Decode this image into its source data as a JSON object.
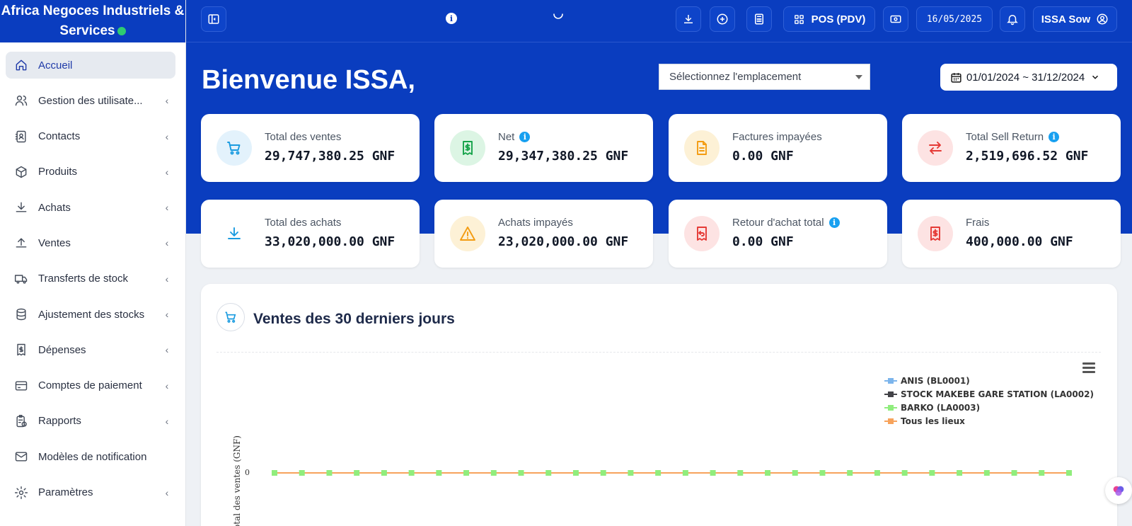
{
  "brand": {
    "line1": "Africa Negoces Industriels &",
    "line2": "Services"
  },
  "sidebar": {
    "items": [
      {
        "label": "Accueil",
        "icon": "home-icon",
        "active": true,
        "chevron": false
      },
      {
        "label": "Gestion des utilisate...",
        "icon": "users-icon",
        "chevron": true
      },
      {
        "label": "Contacts",
        "icon": "contacts-icon",
        "chevron": true
      },
      {
        "label": "Produits",
        "icon": "box-icon",
        "chevron": true
      },
      {
        "label": "Achats",
        "icon": "download-icon",
        "chevron": true
      },
      {
        "label": "Ventes",
        "icon": "upload-icon",
        "chevron": true
      },
      {
        "label": "Transferts de stock",
        "icon": "truck-icon",
        "chevron": true
      },
      {
        "label": "Ajustement des stocks",
        "icon": "database-icon",
        "chevron": true
      },
      {
        "label": "Dépenses",
        "icon": "receipt-icon",
        "chevron": true
      },
      {
        "label": "Comptes de paiement",
        "icon": "credit-card-icon",
        "chevron": true
      },
      {
        "label": "Rapports",
        "icon": "report-icon",
        "chevron": true
      },
      {
        "label": "Modèles de notification",
        "icon": "mail-icon",
        "chevron": false
      },
      {
        "label": "Paramètres",
        "icon": "gear-icon",
        "chevron": true
      }
    ]
  },
  "topbar": {
    "pos_label": "POS (PDV)",
    "date": "16/05/2025",
    "user_label": "ISSA Sow"
  },
  "hero": {
    "welcome": "Bienvenue ISSA,",
    "location_placeholder": "Sélectionnez l'emplacement",
    "date_range": "01/01/2024 ~ 31/12/2024"
  },
  "stats": [
    {
      "title": "Total des ventes",
      "value": "29,747,380.25 GNF",
      "info": false,
      "icon": "cart-icon",
      "bg": "#e3f2fc",
      "fg": "#1a9be0"
    },
    {
      "title": "Net",
      "value": "29,347,380.25 GNF",
      "info": true,
      "icon": "money-receipt-icon",
      "bg": "#dcf5e4",
      "fg": "#16a34a"
    },
    {
      "title": "Factures impayées",
      "value": "0.00 GNF",
      "info": false,
      "icon": "invoice-icon",
      "bg": "#fdf1d6",
      "fg": "#f39c12"
    },
    {
      "title": "Total Sell Return",
      "value": "2,519,696.52 GNF",
      "info": true,
      "icon": "swap-arrows-icon",
      "bg": "#fde3e3",
      "fg": "#e53935"
    },
    {
      "title": "Total des achats",
      "value": "33,020,000.00 GNF",
      "info": false,
      "icon": "download-tray-icon",
      "bg": "#ffffff",
      "fg": "#1a9be0"
    },
    {
      "title": "Achats impayés",
      "value": "23,020,000.00 GNF",
      "info": false,
      "icon": "warning-icon",
      "bg": "#fdf1d6",
      "fg": "#f39c12"
    },
    {
      "title": "Retour d'achat total",
      "value": "0.00 GNF",
      "info": true,
      "icon": "return-receipt-icon",
      "bg": "#fde3e3",
      "fg": "#e53935"
    },
    {
      "title": "Frais",
      "value": "400,000.00 GNF",
      "info": false,
      "icon": "expense-receipt-icon",
      "bg": "#fde3e3",
      "fg": "#e53935"
    }
  ],
  "panel": {
    "title": "Ventes des 30 derniers jours"
  },
  "chart_data": {
    "type": "line",
    "title": "",
    "ylabel": "Total des ventes (GNF)",
    "yticks": [
      "0"
    ],
    "legend_position": "top-right",
    "point_count": 30,
    "series": [
      {
        "name": "ANIS (BL0001)",
        "color": "#7cb5ec",
        "values": [
          0,
          0,
          0,
          0,
          0,
          0,
          0,
          0,
          0,
          0,
          0,
          0,
          0,
          0,
          0,
          0,
          0,
          0,
          0,
          0,
          0,
          0,
          0,
          0,
          0,
          0,
          0,
          0,
          0,
          0
        ]
      },
      {
        "name": "STOCK MAKEBE GARE STATION (LA0002)",
        "color": "#434348",
        "values": [
          0,
          0,
          0,
          0,
          0,
          0,
          0,
          0,
          0,
          0,
          0,
          0,
          0,
          0,
          0,
          0,
          0,
          0,
          0,
          0,
          0,
          0,
          0,
          0,
          0,
          0,
          0,
          0,
          0,
          0
        ]
      },
      {
        "name": "BARKO (LA0003)",
        "color": "#90ed7d",
        "values": [
          0,
          0,
          0,
          0,
          0,
          0,
          0,
          0,
          0,
          0,
          0,
          0,
          0,
          0,
          0,
          0,
          0,
          0,
          0,
          0,
          0,
          0,
          0,
          0,
          0,
          0,
          0,
          0,
          0,
          0
        ]
      },
      {
        "name": "Tous les lieux",
        "color": "#f7a35c",
        "values": [
          0,
          0,
          0,
          0,
          0,
          0,
          0,
          0,
          0,
          0,
          0,
          0,
          0,
          0,
          0,
          0,
          0,
          0,
          0,
          0,
          0,
          0,
          0,
          0,
          0,
          0,
          0,
          0,
          0,
          0
        ]
      }
    ]
  }
}
